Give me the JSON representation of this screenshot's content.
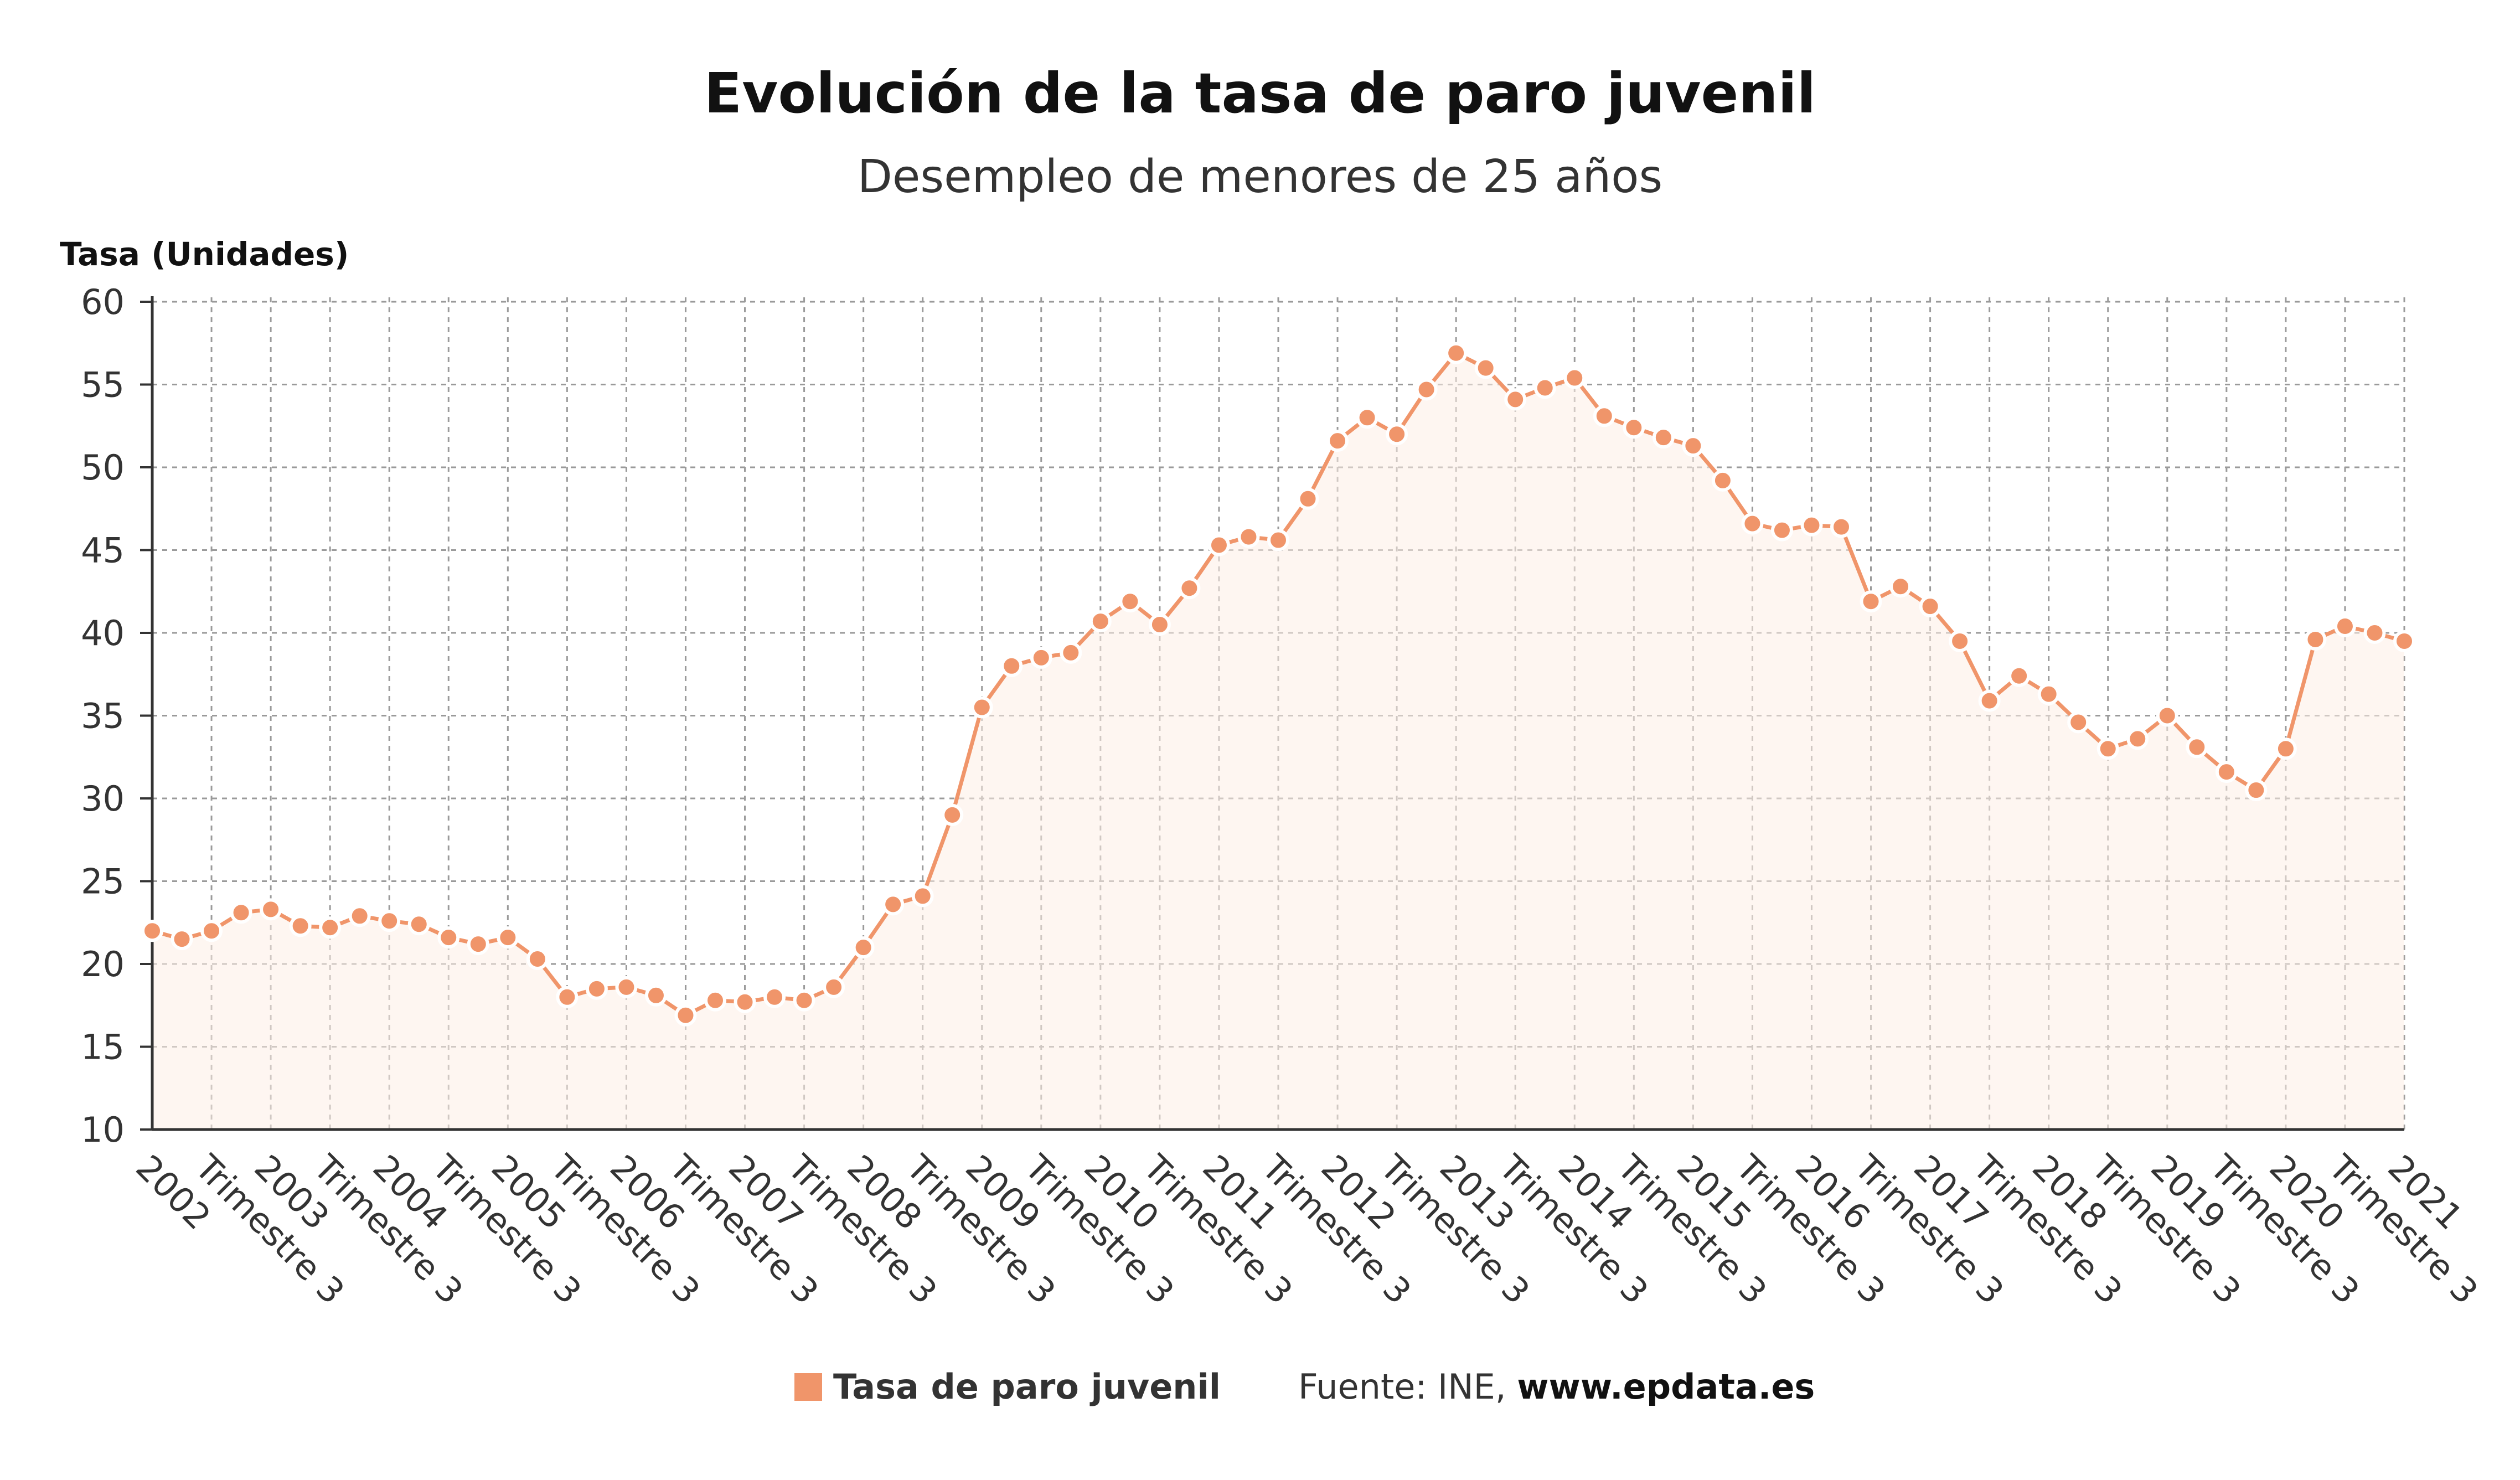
{
  "chart_data": {
    "type": "line",
    "title": "Evolución de la tasa de paro juvenil",
    "subtitle": "Desempleo de menores de 25 años",
    "ylabel": "Tasa (Unidades)",
    "xlabel": "",
    "ylim": [
      10,
      60
    ],
    "yticks": [
      10,
      15,
      20,
      25,
      30,
      35,
      40,
      45,
      50,
      55,
      60
    ],
    "grid": true,
    "legend_position": "bottom",
    "x_tick_labels": [
      "2002",
      "Trimestre 3",
      "2003",
      "Trimestre 3",
      "2004",
      "Trimestre 3",
      "2005",
      "Trimestre 3",
      "2006",
      "Trimestre 3",
      "2007",
      "Trimestre 3",
      "2008",
      "Trimestre 3",
      "2009",
      "Trimestre 3",
      "2010",
      "Trimestre 3",
      "2011",
      "Trimestre 3",
      "2012",
      "Trimestre 3",
      "2013",
      "Trimestre 3",
      "2014",
      "Trimestre 3",
      "2015",
      "Trimestre 3",
      "2016",
      "Trimestre 3",
      "2017",
      "Trimestre 3",
      "2018",
      "Trimestre 3",
      "2019",
      "Trimestre 3",
      "2020",
      "Trimestre 3",
      "2021"
    ],
    "series": [
      {
        "name": "Tasa de paro juvenil",
        "color": "#f0956a",
        "values": [
          22.0,
          21.5,
          22.0,
          23.1,
          23.3,
          22.3,
          22.2,
          22.9,
          22.6,
          22.4,
          21.6,
          21.2,
          21.6,
          20.3,
          18.0,
          18.5,
          18.6,
          18.1,
          16.9,
          17.8,
          17.7,
          18.0,
          17.8,
          18.6,
          21.0,
          23.6,
          24.1,
          29.0,
          35.5,
          38.0,
          38.5,
          38.8,
          40.7,
          41.9,
          40.5,
          42.7,
          45.3,
          45.8,
          45.6,
          48.1,
          51.6,
          53.0,
          52.0,
          54.7,
          56.9,
          56.0,
          54.1,
          54.8,
          55.4,
          53.1,
          52.4,
          51.8,
          51.3,
          49.2,
          46.6,
          46.2,
          46.5,
          46.4,
          41.9,
          42.8,
          41.6,
          39.5,
          35.9,
          37.4,
          36.3,
          34.6,
          33.0,
          33.6,
          35.0,
          33.1,
          31.6,
          30.5,
          33.0,
          39.6,
          40.4,
          40.0,
          39.5
        ]
      }
    ]
  },
  "legend": {
    "label": "Tasa de paro juvenil",
    "color": "#f0956a"
  },
  "source": {
    "prefix": "Fuente: INE, ",
    "site": "www.epdata.es"
  }
}
